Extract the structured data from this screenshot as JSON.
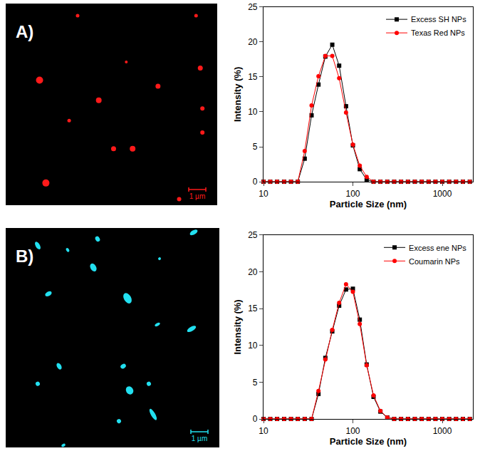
{
  "chart_data": [
    {
      "type": "line",
      "x_label": "Particle Size (nm)",
      "y_label": "Intensity (%)",
      "x": [
        10,
        11.9,
        14.2,
        17.0,
        20.3,
        24.2,
        28.9,
        34.5,
        41.2,
        49.2,
        58.8,
        70.2,
        83.8,
        100,
        119.4,
        142.6,
        170.2,
        203.2,
        242.6,
        289.7,
        345.9,
        413,
        493,
        589,
        703,
        839,
        1000,
        1194,
        1426,
        1702,
        2032
      ],
      "series": [
        {
          "name": "Excess SH NPs",
          "color": "#000000",
          "marker": "square",
          "line_style": "solid",
          "values": [
            0,
            0,
            0,
            0,
            0,
            0,
            3.3,
            9.5,
            13.9,
            17.9,
            19.6,
            16.6,
            10.8,
            5.2,
            1.8,
            0.3,
            0,
            0,
            0,
            0,
            0,
            0,
            0,
            0,
            0,
            0,
            0,
            0,
            0,
            0,
            0
          ]
        },
        {
          "name": "Texas Red NPs",
          "color": "#ff0000",
          "marker": "circle",
          "line_style": "solid",
          "values": [
            0,
            0,
            0,
            0,
            0,
            0,
            4.4,
            10.9,
            15.1,
            18.0,
            18.0,
            14.8,
            9.9,
            5.3,
            2.3,
            0.7,
            0,
            0,
            0,
            0,
            0,
            0,
            0,
            0,
            0,
            0,
            0,
            0,
            0,
            0,
            0
          ]
        }
      ],
      "xlim": [
        10,
        2200
      ],
      "xticks": [
        10,
        100,
        1000
      ],
      "ylim": [
        0,
        25
      ],
      "yticks": [
        0,
        5,
        10,
        15,
        20,
        25
      ],
      "log": "x",
      "grid": false,
      "legend": "top-right"
    },
    {
      "type": "line",
      "x_label": "Particle Size (nm)",
      "y_label": "Intensity (%)",
      "x": [
        10,
        11.9,
        14.2,
        17.0,
        20.3,
        24.2,
        28.9,
        34.5,
        41.2,
        49.2,
        58.8,
        70.2,
        83.8,
        100,
        119.4,
        142.6,
        170.2,
        203.2,
        242.6,
        289.7,
        345.9,
        413,
        493,
        589,
        703,
        839,
        1000,
        1194,
        1426,
        1702,
        2032
      ],
      "series": [
        {
          "name": "Excess ene NPs",
          "color": "#000000",
          "marker": "square",
          "line_style": "solid",
          "values": [
            0,
            0,
            0,
            0,
            0,
            0,
            0,
            0,
            3.4,
            8.3,
            11.9,
            15.4,
            17.6,
            17.7,
            13.5,
            7.4,
            3.0,
            1.0,
            0.2,
            0,
            0,
            0,
            0,
            0,
            0,
            0,
            0,
            0,
            0,
            0,
            0
          ]
        },
        {
          "name": "Coumarin NPs",
          "color": "#ff0000",
          "marker": "circle",
          "line_style": "solid",
          "values": [
            0,
            0,
            0,
            0,
            0,
            0,
            0,
            0,
            3.8,
            8.1,
            12.1,
            15.8,
            18.3,
            17.3,
            12.9,
            7.3,
            3.2,
            1.1,
            0.2,
            0,
            0,
            0,
            0,
            0,
            0,
            0,
            0,
            0,
            0,
            0,
            0
          ]
        }
      ],
      "xlim": [
        10,
        2200
      ],
      "xticks": [
        10,
        100,
        1000
      ],
      "ylim": [
        0,
        25
      ],
      "yticks": [
        0,
        5,
        10,
        15,
        20,
        25
      ],
      "log": "x",
      "grid": false,
      "legend": "top-right"
    }
  ],
  "micrographs": [
    {
      "panel": "A)",
      "scale_bar": "1 µm",
      "color": "#ff1a1a"
    },
    {
      "panel": "B)",
      "scale_bar": "1 µm",
      "color": "#22e0f0"
    }
  ]
}
